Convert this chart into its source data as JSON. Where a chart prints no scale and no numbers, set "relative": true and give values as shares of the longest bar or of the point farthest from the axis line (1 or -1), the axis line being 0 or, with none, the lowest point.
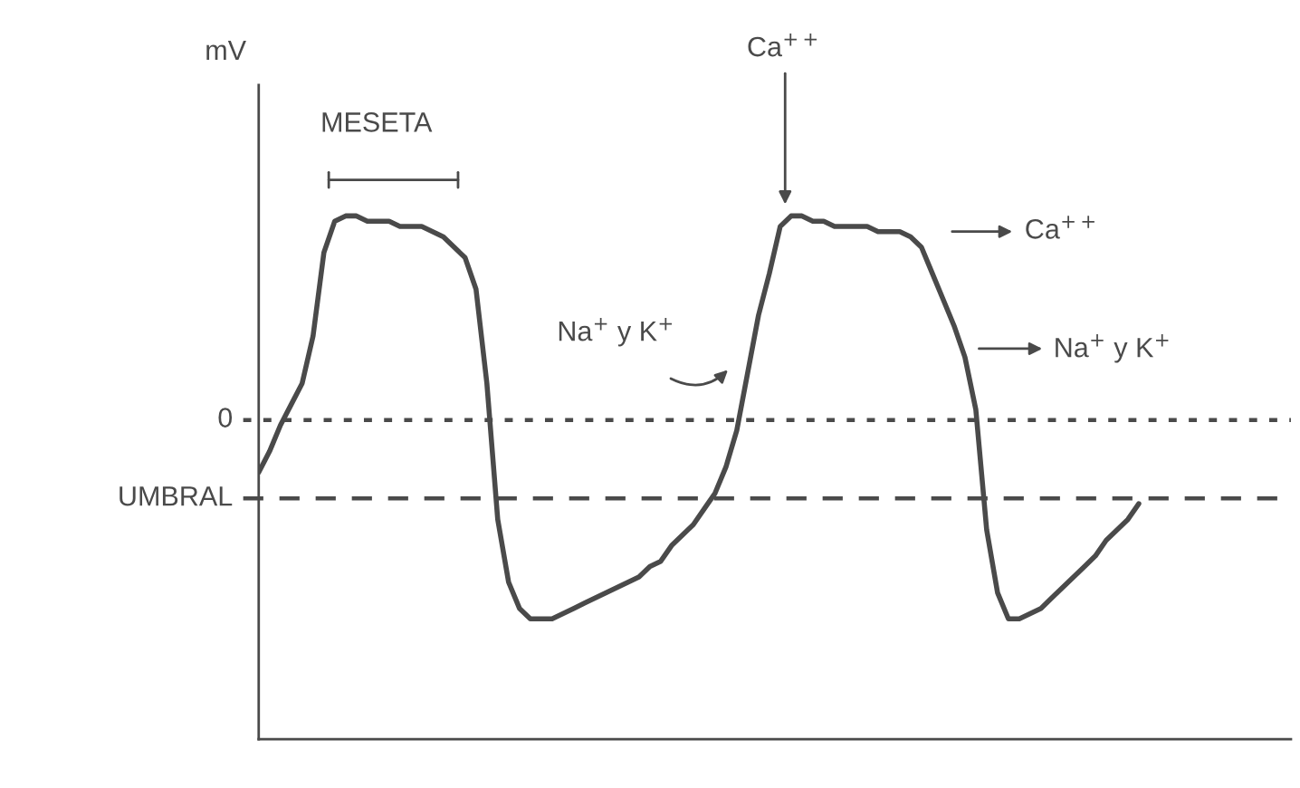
{
  "chart_data": {
    "type": "line",
    "relative": true,
    "categories": [
      null,
      null,
      null,
      null,
      null,
      null,
      null,
      null,
      null,
      null,
      null,
      null,
      null,
      null,
      null,
      null,
      null,
      null,
      null,
      null,
      null,
      null,
      null,
      null,
      null,
      null,
      null,
      null,
      null,
      null,
      null,
      null,
      null,
      null,
      null,
      null,
      null,
      null,
      null,
      null,
      null,
      null,
      null,
      null,
      null,
      null,
      null,
      null,
      null,
      null,
      null,
      null,
      null,
      null,
      null,
      null,
      null,
      null,
      null,
      null,
      null,
      null,
      null,
      null,
      null,
      null,
      null,
      null,
      null,
      null,
      null,
      null,
      null,
      null,
      null,
      null,
      null,
      null,
      null,
      null,
      null,
      null,
      null,
      null,
      null,
      null,
      null,
      null,
      null,
      null,
      null,
      null,
      null,
      null,
      null,
      null
    ],
    "series": [
      {
        "color": "#4a4a4a",
        "values": [
          0.51,
          0.55,
          0.6,
          0.64,
          0.68,
          0.77,
          0.93,
          0.99,
          1.0,
          1.0,
          0.99,
          0.99,
          0.99,
          0.98,
          0.98,
          0.98,
          0.97,
          0.96,
          0.94,
          0.92,
          0.86,
          0.68,
          0.42,
          0.3,
          0.25,
          0.23,
          0.23,
          0.23,
          0.24,
          0.25,
          0.26,
          0.27,
          0.28,
          0.29,
          0.3,
          0.31,
          0.33,
          0.34,
          0.37,
          0.39,
          0.41,
          0.44,
          0.47,
          0.52,
          0.59,
          0.7,
          0.81,
          0.89,
          0.98,
          1.0,
          1.0,
          0.99,
          0.99,
          0.98,
          0.98,
          0.98,
          0.98,
          0.97,
          0.97,
          0.97,
          0.96,
          0.94,
          0.89,
          0.84,
          0.79,
          0.73,
          0.63,
          0.4,
          0.28,
          0.23,
          0.23,
          0.24,
          0.25,
          0.27,
          0.29,
          0.31,
          0.33,
          0.35,
          0.38,
          0.4,
          0.42,
          0.45,
          null,
          null,
          null,
          null,
          null,
          null,
          null,
          null,
          null,
          null,
          null,
          null,
          null,
          null
        ]
      }
    ],
    "ref_lines": [
      {
        "axis": "y",
        "value": 0.61,
        "line_style": "dotted",
        "color": "#4a4a4a"
      },
      {
        "axis": "y",
        "value": 0.46,
        "label": "UMBRAL",
        "line_style": "dashed",
        "color": "#4a4a4a"
      }
    ],
    "annotations": [
      "mV",
      "MESETA",
      "Ca$^{++}$",
      "Na$^{+}$ y K$^{+}$",
      "Ca$^{++}$",
      "Na$^{+}$ y K$^{+}$",
      "0"
    ],
    "grid": false,
    "legend": false,
    "marker": "none",
    "line_style": "solid"
  }
}
